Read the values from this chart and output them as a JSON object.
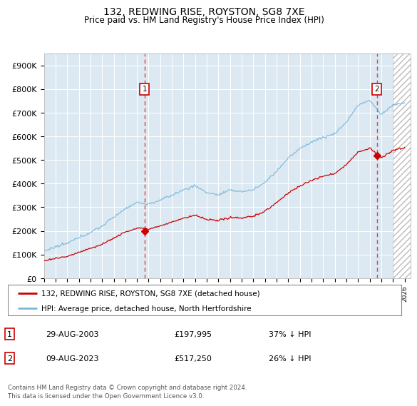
{
  "title": "132, REDWING RISE, ROYSTON, SG8 7XE",
  "subtitle": "Price paid vs. HM Land Registry's House Price Index (HPI)",
  "ylabel_ticks": [
    "£0",
    "£100K",
    "£200K",
    "£300K",
    "£400K",
    "£500K",
    "£600K",
    "£700K",
    "£800K",
    "£900K"
  ],
  "ytick_values": [
    0,
    100000,
    200000,
    300000,
    400000,
    500000,
    600000,
    700000,
    800000,
    900000
  ],
  "ylim": [
    0,
    950000
  ],
  "xlim_start": 1995.0,
  "xlim_end": 2026.5,
  "hpi_color": "#7ab8d9",
  "price_color": "#cc0000",
  "transaction1_x": 2003.66,
  "transaction1_y": 197995,
  "transaction2_x": 2023.61,
  "transaction2_y": 517250,
  "transaction1_label": "1",
  "transaction2_label": "2",
  "vline1_x": 2003.66,
  "vline2_x": 2023.61,
  "legend_line1": "132, REDWING RISE, ROYSTON, SG8 7XE (detached house)",
  "legend_line2": "HPI: Average price, detached house, North Hertfordshire",
  "table_row1_num": "1",
  "table_row1_date": "29-AUG-2003",
  "table_row1_price": "£197,995",
  "table_row1_hpi": "37% ↓ HPI",
  "table_row2_num": "2",
  "table_row2_date": "09-AUG-2023",
  "table_row2_price": "£517,250",
  "table_row2_hpi": "26% ↓ HPI",
  "footer": "Contains HM Land Registry data © Crown copyright and database right 2024.\nThis data is licensed under the Open Government Licence v3.0.",
  "bg_color": "#ffffff",
  "plot_bg_color": "#dce8f2",
  "grid_color": "#ffffff",
  "marker_color": "#cc0000",
  "marker_size": 6
}
